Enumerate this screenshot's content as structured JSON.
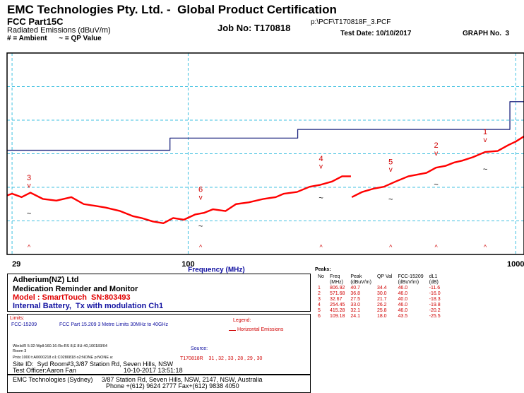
{
  "header": {
    "company": "EMC Technologies Pty. Ltd. -  Global Product Certification",
    "standard": "FCC Part15C",
    "measurement": "Radiated Emissions (dBuV/m)",
    "legend_note": "# = Ambient      ~ = QP Value",
    "job": "Job No: T170818",
    "file": "p:\\PCF\\T170818F_3.PCF",
    "test_date": "Test Date: 10/10/2017",
    "graph": "GRAPH No.  3"
  },
  "chart_data": {
    "type": "line",
    "xlabel": "Frequency (MHz)",
    "xscale": "log",
    "xlim": [
      28,
      1060
    ],
    "ylim": [
      10,
      68
    ],
    "xticks": [
      29,
      100,
      1000
    ],
    "grid": true,
    "series": [
      {
        "name": "Horizontal Emissions",
        "color": "#ff0000",
        "x": [
          28,
          29,
          31,
          33,
          36,
          39.6,
          44,
          48,
          52,
          56,
          62,
          68,
          72,
          78,
          84,
          90,
          97,
          105,
          112,
          119,
          130,
          140,
          153,
          170,
          185,
          196,
          215,
          235,
          252,
          275,
          295,
          314,
          null,
          316,
          340,
          370,
          396,
          430,
          470,
          534,
          571,
          610,
          650,
          686,
          740,
          806,
          881,
          950,
          1000,
          1060
        ],
        "values": [
          27,
          27.5,
          26.5,
          27.8,
          26,
          25.5,
          26.5,
          24.5,
          24,
          23.5,
          22.5,
          21,
          20.5,
          19.5,
          19,
          20.5,
          20,
          21.5,
          22,
          23,
          22.5,
          24.5,
          25,
          26,
          26.5,
          27.5,
          28,
          29.5,
          30,
          31,
          32.5,
          32.5,
          null,
          26.5,
          28,
          29,
          29.5,
          31,
          32.5,
          33.5,
          35,
          35.5,
          36.5,
          37,
          38,
          39.5,
          39.8,
          41.5,
          42.5,
          44
        ]
      },
      {
        "name": "FCC-15209",
        "color": "#1a237e",
        "x": [
          28,
          88,
          88,
          216,
          216,
          960,
          960,
          1060
        ],
        "values": [
          40,
          40,
          43.5,
          43.5,
          46,
          46,
          54,
          54
        ]
      }
    ],
    "peaks": [
      {
        "label": "1",
        "x": 806.92,
        "y": 40.7,
        "qp": 34.4
      },
      {
        "label": "2",
        "x": 571.68,
        "y": 36.8,
        "qp": 30
      },
      {
        "label": "3",
        "x": 32.67,
        "y": 27.5,
        "qp": 21.7
      },
      {
        "label": "4",
        "x": 254.45,
        "y": 33,
        "qp": 26.2
      },
      {
        "label": "5",
        "x": 415.28,
        "y": 32.1,
        "qp": 25.8
      },
      {
        "label": "6",
        "x": 109.18,
        "y": 24.1,
        "qp": 18
      }
    ]
  },
  "peaks_table": {
    "title": "Peaks:",
    "columns": [
      {
        "title": "No"
      },
      {
        "title": "Freq",
        "unit": "(MHz)"
      },
      {
        "title": "Peak",
        "unit": "(dBuV/m)"
      },
      {
        "title": "QP Val"
      },
      {
        "title": "FCC-15209",
        "unit": "(dBuV/m)"
      },
      {
        "title": "dL1",
        "unit": "(dB)"
      }
    ],
    "rows": [
      [
        "1",
        "806.92",
        "40.7",
        "34.4",
        "46.0",
        "-11.6"
      ],
      [
        "2",
        "571.68",
        "36.8",
        "30.0",
        "46.0",
        "-16.0"
      ],
      [
        "3",
        "32.67",
        "27.5",
        "21.7",
        "40.0",
        "-18.3"
      ],
      [
        "4",
        "254.45",
        "33.0",
        "26.2",
        "46.0",
        "-19.8"
      ],
      [
        "5",
        "415.28",
        "32.1",
        "25.8",
        "46.0",
        "-20.2"
      ],
      [
        "6",
        "109.18",
        "24.1",
        "18.0",
        "43.5",
        "-25.5"
      ]
    ]
  },
  "info": {
    "client": "Adherium(NZ) Ltd",
    "product": "Medication Reminder and Monitor",
    "model": "Model : SmartTouch  SN:803493",
    "config": "Internal Battery,  Tx with modulation Ch1",
    "limits_title": "Limits:",
    "limit_name": "FCC-15209",
    "limit_desc": "FCC Part 15.209 3 Metre Limits 30MHz to 40GHz",
    "legend_title": "Legend:",
    "settings": "WinIsIR 5:32-Wpll:160.16-Rx:RS 8,E 8U-40,100183/04",
    "room": "Room 3",
    "source_title": "Source:",
    "points": "Pnts:1000 t:A0000218 o1:C0280818 o2:NONE p:NONE a:",
    "source": "T170818R    31 , 32 , 33 , 28 , 29 , 30",
    "site": "Site ID:  Syd Room#3,3/87 Station Rd, Seven Hills, NSW",
    "officer": "Test Officer:Aaron Fan",
    "timestamp": "10-10-2017 13:51:18",
    "lab": "EMC Technologies (Sydney)     3/87 Station Rd, Seven Hills, NSW, 2147, NSW, Australia",
    "phone": "Phone +(612) 9624 2777 Fax+(612) 9838 4050"
  }
}
